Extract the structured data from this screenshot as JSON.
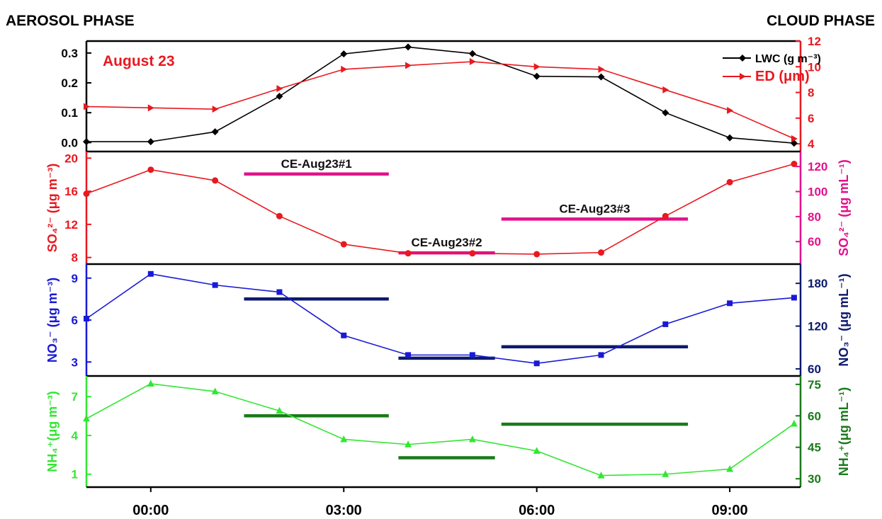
{
  "header": {
    "left_title": "AEROSOL PHASE",
    "right_title": "CLOUD PHASE"
  },
  "x_axis": {
    "range": [
      -1,
      10.1
    ],
    "ticks": [
      0,
      3,
      6,
      9
    ],
    "tick_labels": [
      "00:00",
      "03:00",
      "06:00",
      "09:00"
    ]
  },
  "chart_data": [
    {
      "type": "line",
      "panel": "lwc-ed",
      "annotation": "August 23",
      "x": [
        -1,
        0,
        1,
        2,
        3,
        4,
        5,
        6,
        7,
        8,
        9,
        10
      ],
      "series": [
        {
          "name": "LWC (g m⁻³)",
          "axis": "left",
          "color": "#000000",
          "marker": "diamond",
          "values": [
            0.003,
            0.003,
            0.036,
            0.155,
            0.297,
            0.32,
            0.298,
            0.222,
            0.22,
            0.1,
            0.016,
            -0.002
          ]
        },
        {
          "name": "ED (μm)",
          "axis": "right",
          "color": "#e8191f",
          "marker": "triangle-right",
          "values": [
            6.9,
            6.8,
            6.7,
            8.3,
            9.8,
            10.1,
            10.4,
            10.0,
            9.8,
            8.2,
            6.6,
            4.4
          ]
        }
      ],
      "left_axis": {
        "range": [
          -0.03,
          0.34
        ],
        "ticks": [
          0.0,
          0.1,
          0.2,
          0.3
        ],
        "tick_labels": [
          "0.0",
          "0.1",
          "0.2",
          "0.3"
        ],
        "color": "#000000"
      },
      "right_axis": {
        "range": [
          3.4,
          12
        ],
        "ticks": [
          4,
          6,
          8,
          10,
          12
        ],
        "tick_labels": [
          "4",
          "6",
          "8",
          "10",
          "12"
        ],
        "color": "#e8191f"
      },
      "legend": "top-right"
    },
    {
      "type": "line",
      "panel": "sulfate",
      "x": [
        -1,
        0,
        1,
        2,
        3,
        4,
        5,
        6,
        7,
        8,
        9,
        10
      ],
      "series": [
        {
          "axis": "left",
          "color": "#e8191f",
          "marker": "circle",
          "values": [
            15.7,
            18.6,
            17.3,
            13.0,
            9.6,
            8.5,
            8.5,
            8.4,
            8.6,
            13.0,
            17.1,
            19.3
          ]
        }
      ],
      "segments": [
        {
          "label": "CE-Aug23#1",
          "x": [
            1.45,
            3.7
          ],
          "value": 114,
          "color": "#e2118c"
        },
        {
          "label": "CE-Aug23#2",
          "x": [
            3.85,
            5.35
          ],
          "value": 51,
          "color": "#e2118c"
        },
        {
          "label": "CE-Aug23#3",
          "x": [
            5.45,
            8.35
          ],
          "value": 78,
          "color": "#e2118c"
        }
      ],
      "left_axis": {
        "label": "SO₄²⁻ (μg m⁻³)",
        "range": [
          7.2,
          20.8
        ],
        "ticks": [
          8,
          12,
          16,
          20
        ],
        "tick_labels": [
          "8",
          "12",
          "16",
          "20"
        ],
        "color": "#e8191f"
      },
      "right_axis": {
        "label": "SO₄²⁻ (μg mL⁻¹)",
        "range": [
          42,
          132
        ],
        "ticks": [
          60,
          80,
          100,
          120
        ],
        "tick_labels": [
          "60",
          "80",
          "100",
          "120"
        ],
        "color": "#e2118c"
      }
    },
    {
      "type": "line",
      "panel": "nitrate",
      "x": [
        -1,
        0,
        1,
        2,
        3,
        4,
        5,
        6,
        7,
        8,
        9,
        10
      ],
      "series": [
        {
          "axis": "left",
          "color": "#1919d6",
          "marker": "square",
          "values": [
            6.1,
            9.3,
            8.5,
            8.0,
            4.9,
            3.5,
            3.5,
            2.9,
            3.5,
            5.7,
            7.2,
            7.6
          ]
        }
      ],
      "segments": [
        {
          "x": [
            1.45,
            3.7
          ],
          "value": 158,
          "color": "#0c1a6e"
        },
        {
          "x": [
            3.85,
            5.35
          ],
          "value": 75,
          "color": "#0c1a6e"
        },
        {
          "x": [
            5.45,
            8.35
          ],
          "value": 91,
          "color": "#0c1a6e"
        }
      ],
      "left_axis": {
        "label": "NO₃⁻ (μg m⁻³)",
        "range": [
          2.0,
          10.0
        ],
        "ticks": [
          3,
          6,
          9
        ],
        "tick_labels": [
          "3",
          "6",
          "9"
        ],
        "color": "#1919d6"
      },
      "right_axis": {
        "label": "NO₃⁻ (μg mL⁻¹)",
        "range": [
          50,
          207
        ],
        "ticks": [
          60,
          120,
          180
        ],
        "tick_labels": [
          "60",
          "120",
          "180"
        ],
        "color": "#0c1a6e"
      }
    },
    {
      "type": "line",
      "panel": "ammonium",
      "x": [
        -1,
        0,
        1,
        2,
        3,
        4,
        5,
        6,
        7,
        8,
        9,
        10
      ],
      "series": [
        {
          "axis": "left",
          "color": "#33e633",
          "marker": "triangle-up",
          "values": [
            5.3,
            8.0,
            7.4,
            5.9,
            3.7,
            3.3,
            3.7,
            2.8,
            0.9,
            1.0,
            1.4,
            4.9
          ]
        }
      ],
      "segments": [
        {
          "x": [
            1.45,
            3.7
          ],
          "value": 60,
          "color": "#1a7a1a"
        },
        {
          "x": [
            3.85,
            5.35
          ],
          "value": 40,
          "color": "#1a7a1a"
        },
        {
          "x": [
            5.45,
            8.35
          ],
          "value": 56,
          "color": "#1a7a1a"
        }
      ],
      "left_axis": {
        "label": "NH₄⁺(μg m⁻³)",
        "range": [
          0.0,
          8.6
        ],
        "ticks": [
          1,
          4,
          7
        ],
        "tick_labels": [
          "1",
          "4",
          "7"
        ],
        "color": "#33e633"
      },
      "right_axis": {
        "label": "NH₄⁺(μg mL⁻¹)",
        "range": [
          26,
          79
        ],
        "ticks": [
          30,
          45,
          60,
          75
        ],
        "tick_labels": [
          "30",
          "45",
          "60",
          "75"
        ],
        "color": "#1a7a1a"
      }
    }
  ]
}
